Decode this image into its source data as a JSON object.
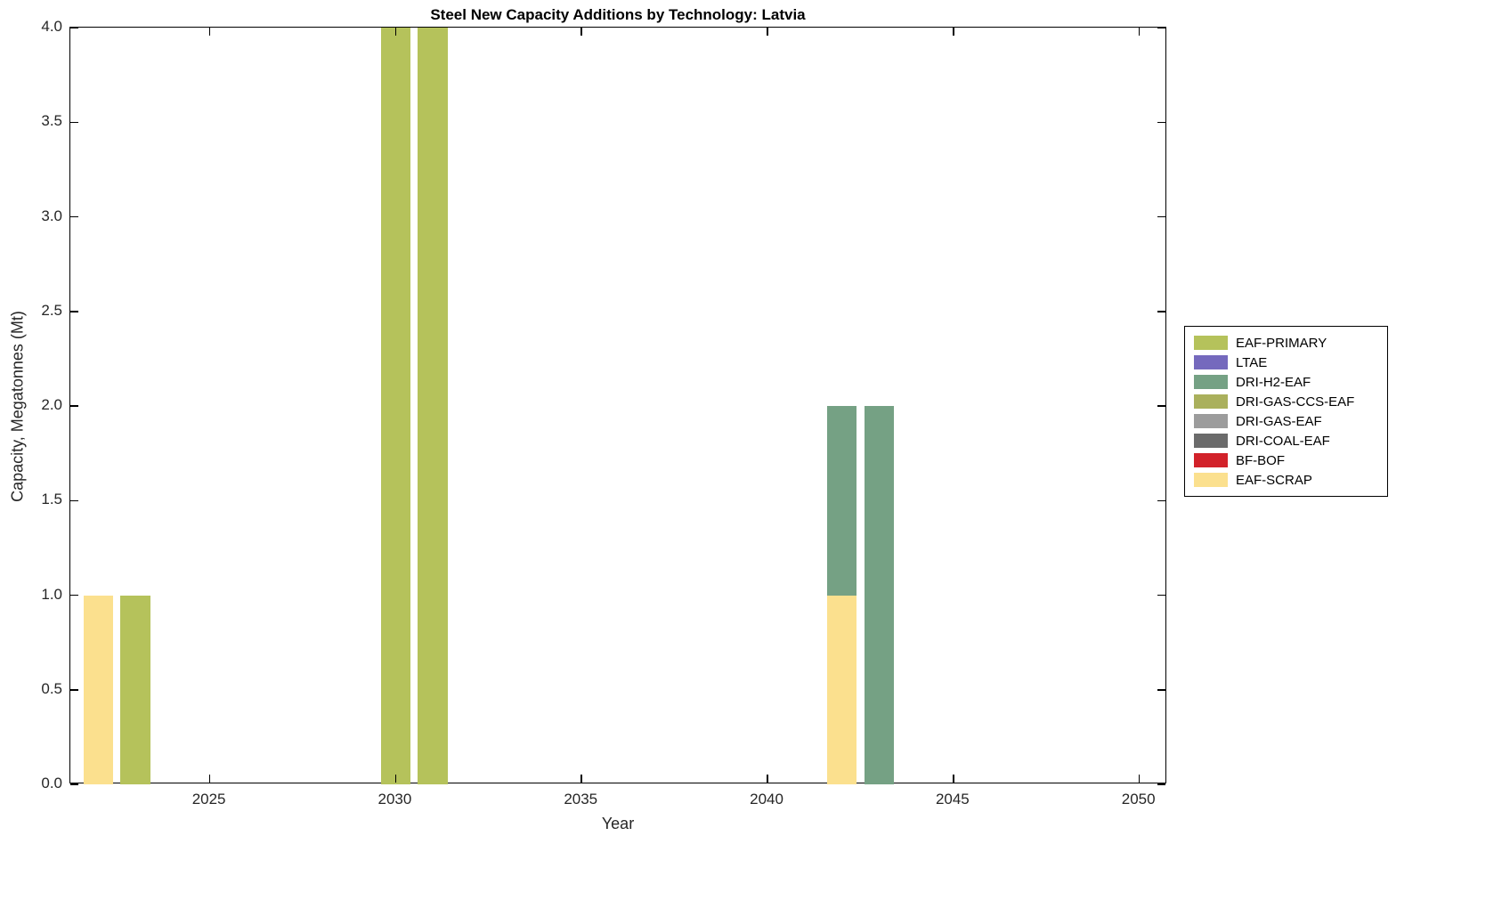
{
  "chart_data": {
    "type": "bar",
    "stacked": true,
    "title": "Steel New Capacity Additions by Technology: Latvia",
    "xlabel": "Year",
    "ylabel": "Capacity, Megatonnes (Mt)",
    "xlim": [
      2021.25,
      2050.75
    ],
    "ylim": [
      0,
      4
    ],
    "xticks": [
      2025,
      2030,
      2035,
      2040,
      2045,
      2050
    ],
    "yticks": [
      0,
      0.5,
      1,
      1.5,
      2,
      2.5,
      3,
      3.5,
      4
    ],
    "yticklabels": [
      "0.0",
      "0.5",
      "1.0",
      "1.5",
      "2.0",
      "2.5",
      "3.0",
      "3.5",
      "4.0"
    ],
    "bar_width_years": 0.8,
    "grid": false,
    "legend": {
      "position": "right-outside",
      "entries": [
        "EAF-PRIMARY",
        "LTAE",
        "DRI-H2-EAF",
        "DRI-GAS-CCS-EAF",
        "DRI-GAS-EAF",
        "DRI-COAL-EAF",
        "BF-BOF",
        "EAF-SCRAP"
      ]
    },
    "colors": {
      "EAF-PRIMARY": "#b5c25b",
      "LTAE": "#7569bd",
      "DRI-H2-EAF": "#75a184",
      "DRI-GAS-CCS-EAF": "#aab05c",
      "DRI-GAS-EAF": "#9c9c9c",
      "DRI-COAL-EAF": "#6b6b6b",
      "BF-BOF": "#d2222a",
      "EAF-SCRAP": "#fbe08e"
    },
    "bars": [
      {
        "year": 2022,
        "segments": [
          {
            "tech": "EAF-SCRAP",
            "value": 1.0
          }
        ]
      },
      {
        "year": 2023,
        "segments": [
          {
            "tech": "EAF-PRIMARY",
            "value": 1.0
          }
        ]
      },
      {
        "year": 2030,
        "segments": [
          {
            "tech": "EAF-PRIMARY",
            "value": 4.0
          }
        ]
      },
      {
        "year": 2031,
        "segments": [
          {
            "tech": "EAF-PRIMARY",
            "value": 4.0
          }
        ]
      },
      {
        "year": 2042,
        "segments": [
          {
            "tech": "EAF-SCRAP",
            "value": 1.0
          },
          {
            "tech": "DRI-H2-EAF",
            "value": 1.0
          }
        ]
      },
      {
        "year": 2043,
        "segments": [
          {
            "tech": "DRI-H2-EAF",
            "value": 2.0
          }
        ]
      }
    ]
  }
}
